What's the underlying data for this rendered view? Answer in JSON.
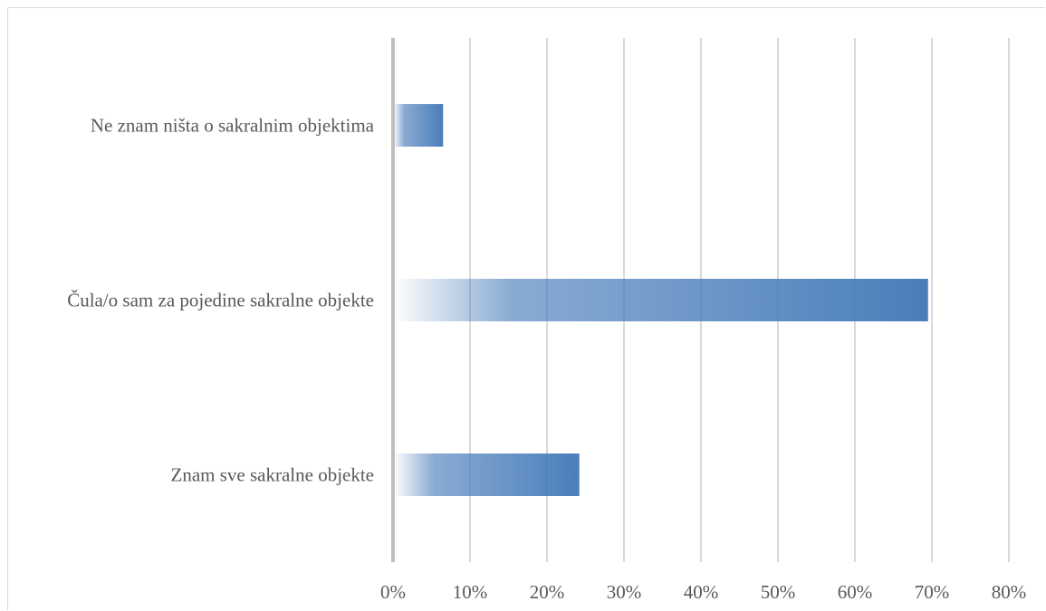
{
  "chart_data": {
    "type": "bar",
    "orientation": "horizontal",
    "categories": [
      "Ne znam ništa o sakralnim objektima",
      "Čula/o sam za pojedine sakralne objekte",
      "Znam sve sakralne objekte"
    ],
    "values": [
      6.5,
      69.5,
      24.2
    ],
    "x_ticks": [
      "0%",
      "10%",
      "20%",
      "30%",
      "40%",
      "50%",
      "60%",
      "70%",
      "80%"
    ],
    "xlim": [
      0,
      80
    ],
    "title": "",
    "xlabel": "",
    "ylabel": "",
    "grid": "vertical",
    "legend": "none",
    "bar_color": "#4a7ebb",
    "grid_color": "#d9d9d9",
    "text_color": "#595959"
  }
}
